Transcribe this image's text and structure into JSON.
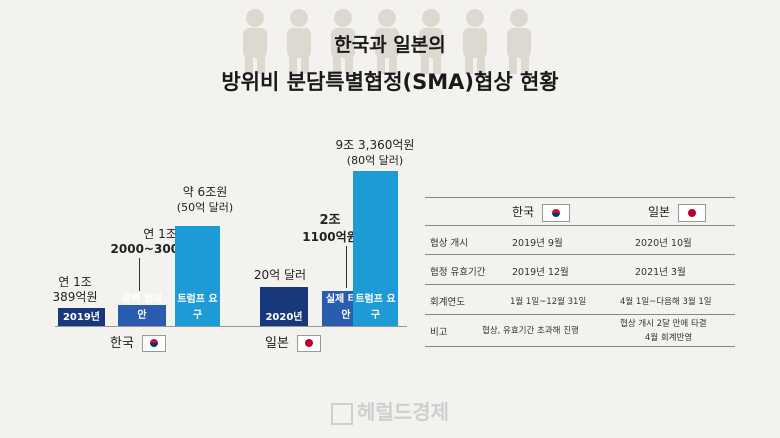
{
  "title_line1": "한국과 일본의",
  "title_line2": "방위비 분담특별협정(SMA)협상 현황",
  "chart_data": {
    "type": "bar",
    "groups": [
      {
        "country": "한국",
        "bars": [
          {
            "label": "2019년",
            "value_text_1": "연 1조",
            "value_text_2": "389억원",
            "value_krw_eok": 10389
          },
          {
            "label": "유력 합의안",
            "value_text_1": "연 1조",
            "value_text_2": "2000~3000억원",
            "value_krw_eok": 12500
          },
          {
            "label": "트럼프 요구",
            "value_text_1": "약 6조원",
            "value_text_2": "(50억 달러)",
            "value_krw_eok": 60000
          }
        ]
      },
      {
        "country": "일본",
        "bars": [
          {
            "label": "2020년",
            "value_text_1": "20억 달러",
            "value_text_2": "",
            "value_krw_eok": 23344
          },
          {
            "label": "실제 타결안",
            "value_text_1": "2조",
            "value_text_2": "1100억원",
            "value_krw_eok": 21100
          },
          {
            "label": "트럼프 요구",
            "value_text_1": "9조 3,360억원",
            "value_text_2": "(80억 달러)",
            "value_krw_eok": 93360
          }
        ]
      }
    ]
  },
  "table": {
    "headers": [
      "",
      "한국",
      "일본"
    ],
    "rows": [
      {
        "label": "협상 개시",
        "korea": "2019년 9월",
        "japan": "2020년 10월"
      },
      {
        "label": "협정 유효기간",
        "korea": "2019년 12월",
        "japan": "2021년 3월"
      },
      {
        "label": "회계연도",
        "korea": "1월 1일~12월 31일",
        "japan": "4월 1일~다음해 3월 1일"
      },
      {
        "label": "비고",
        "korea": "협상, 유효기간 초과해 진행",
        "japan": "협상 개시 2달 만에 타결",
        "japan_2": "4월 회계반영"
      }
    ]
  },
  "watermark": "헤럴드경제",
  "colors": {
    "dark_navy": "#17387a",
    "mid_blue": "#2a5cb0",
    "light_blue": "#1e9ad6",
    "axis": "#999999"
  }
}
